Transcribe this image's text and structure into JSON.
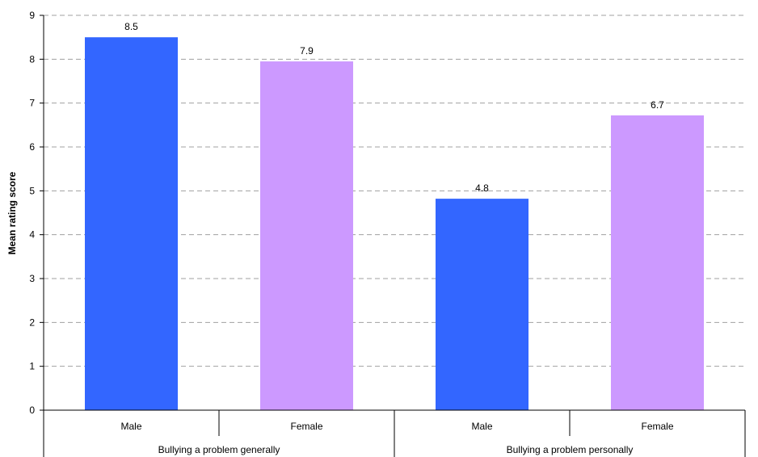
{
  "chart_data": {
    "type": "bar",
    "ylabel": "Mean rating score",
    "ylim": [
      0,
      9
    ],
    "yticks": [
      "0",
      "1",
      "2",
      "3",
      "4",
      "5",
      "6",
      "7",
      "8",
      "9"
    ],
    "grid": true,
    "groups": [
      {
        "label": "Bullying a problem generally"
      },
      {
        "label": "Bullying a problem personally"
      }
    ],
    "bars": [
      {
        "group": 0,
        "category": "Male",
        "value": 8.5,
        "label": "8.5",
        "color": "#3366ff"
      },
      {
        "group": 0,
        "category": "Female",
        "value": 7.95,
        "label": "7.9",
        "color": "#cc99ff"
      },
      {
        "group": 1,
        "category": "Male",
        "value": 4.82,
        "label": "4.8",
        "color": "#3366ff"
      },
      {
        "group": 1,
        "category": "Female",
        "value": 6.72,
        "label": "6.7",
        "color": "#cc99ff"
      }
    ]
  }
}
